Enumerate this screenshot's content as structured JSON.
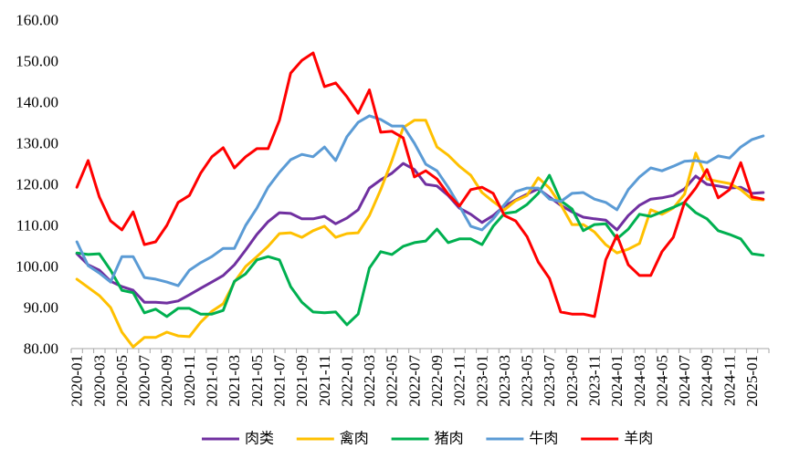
{
  "chart_data": {
    "type": "line",
    "ylim": [
      80,
      160
    ],
    "grid": false,
    "legend": "bottom",
    "yticks": [
      "80.00",
      "90.00",
      "100.00",
      "110.00",
      "120.00",
      "130.00",
      "140.00",
      "150.00",
      "160.00"
    ],
    "x_tick_labels": [
      "2020-01",
      "2020-03",
      "2020-05",
      "2020-07",
      "2020-09",
      "2020-11",
      "2021-01",
      "2021-03",
      "2021-05",
      "2021-07",
      "2021-09",
      "2021-11",
      "2022-01",
      "2022-03",
      "2022-05",
      "2022-07",
      "2022-09",
      "2022-11",
      "2023-01",
      "2023-03",
      "2023-05",
      "2023-07",
      "2023-09",
      "2023-11",
      "2024-01",
      "2024-03",
      "2024-05",
      "2024-07",
      "2024-09",
      "2024-11",
      "2025-01"
    ],
    "series": [
      {
        "name": "肉类",
        "color": "#7030A0",
        "values": [
          103.1,
          100.4,
          99.1,
          96.4,
          95.1,
          94.2,
          91.3,
          91.3,
          91.1,
          91.6,
          93.1,
          94.7,
          96.2,
          97.8,
          100.4,
          104.0,
          107.8,
          110.9,
          113.1,
          112.9,
          111.6,
          111.6,
          112.2,
          110.4,
          111.8,
          113.8,
          119.1,
          121.1,
          122.7,
          125.1,
          123.6,
          120.0,
          119.6,
          117.3,
          114.2,
          112.7,
          110.7,
          112.4,
          114.7,
          116.2,
          117.6,
          118.9,
          116.9,
          114.9,
          113.3,
          112.0,
          111.6,
          111.3,
          108.9,
          112.4,
          114.9,
          116.4,
          116.7,
          117.3,
          118.9,
          122.0,
          120.0,
          119.6,
          119.1,
          119.3,
          117.8,
          118.0
        ]
      },
      {
        "name": "禽肉",
        "color": "#FFC000",
        "values": [
          96.9,
          94.9,
          92.9,
          90.0,
          84.0,
          80.4,
          82.7,
          82.7,
          84.0,
          83.1,
          82.9,
          86.4,
          89.1,
          90.9,
          96.2,
          100.0,
          102.4,
          104.9,
          108.0,
          108.2,
          107.1,
          108.7,
          109.8,
          107.1,
          108.0,
          108.2,
          112.4,
          118.7,
          125.8,
          133.8,
          135.6,
          135.6,
          129.1,
          127.1,
          124.4,
          122.2,
          118.0,
          115.8,
          113.8,
          116.0,
          117.3,
          121.6,
          119.1,
          115.1,
          110.2,
          110.2,
          108.4,
          105.3,
          103.3,
          104.2,
          105.6,
          113.8,
          112.7,
          114.2,
          117.6,
          127.6,
          121.3,
          120.7,
          120.2,
          118.7,
          116.4,
          116.2
        ]
      },
      {
        "name": "猪肉",
        "color": "#00B050",
        "values": [
          103.3,
          102.9,
          103.1,
          99.1,
          94.2,
          93.6,
          88.7,
          89.6,
          87.8,
          89.8,
          89.8,
          88.4,
          88.4,
          89.3,
          96.4,
          98.2,
          101.6,
          102.4,
          101.6,
          95.1,
          91.3,
          88.9,
          88.7,
          88.9,
          85.8,
          88.4,
          99.6,
          103.6,
          102.9,
          104.9,
          105.8,
          106.2,
          109.1,
          105.8,
          106.7,
          106.7,
          105.3,
          109.8,
          112.9,
          113.3,
          115.1,
          117.8,
          122.2,
          116.0,
          114.0,
          108.7,
          110.2,
          110.4,
          106.7,
          109.1,
          112.7,
          112.2,
          113.3,
          114.4,
          115.6,
          113.1,
          111.6,
          108.7,
          107.8,
          106.7,
          103.1,
          102.7
        ]
      },
      {
        "name": "牛肉",
        "color": "#5B9BD5",
        "values": [
          106.0,
          100.2,
          98.4,
          96.2,
          102.4,
          102.4,
          97.3,
          96.9,
          96.2,
          95.3,
          99.1,
          100.9,
          102.4,
          104.4,
          104.4,
          110.0,
          114.2,
          119.3,
          122.9,
          126.0,
          127.3,
          126.7,
          129.1,
          125.8,
          131.6,
          135.1,
          136.7,
          135.8,
          134.2,
          134.2,
          130.0,
          124.9,
          123.3,
          119.3,
          114.7,
          109.8,
          108.9,
          111.6,
          115.1,
          118.2,
          119.1,
          119.1,
          116.4,
          115.8,
          117.8,
          118.0,
          116.4,
          115.6,
          113.8,
          118.7,
          121.8,
          124.0,
          123.3,
          124.4,
          125.6,
          125.8,
          125.3,
          126.9,
          126.4,
          129.1,
          130.9,
          131.8
        ]
      },
      {
        "name": "羊肉",
        "color": "#FF0000",
        "values": [
          119.3,
          125.8,
          116.9,
          111.1,
          108.9,
          113.3,
          105.3,
          106.0,
          110.0,
          115.6,
          117.3,
          122.7,
          126.7,
          128.9,
          124.0,
          126.7,
          128.7,
          128.7,
          135.6,
          147.1,
          150.2,
          152.0,
          143.8,
          144.7,
          141.3,
          137.3,
          143.0,
          132.7,
          132.9,
          131.3,
          121.8,
          123.3,
          121.3,
          117.6,
          114.7,
          118.7,
          119.3,
          117.8,
          112.4,
          111.1,
          107.3,
          101.1,
          97.1,
          88.9,
          88.4,
          88.4,
          87.8,
          101.6,
          107.6,
          100.4,
          97.8,
          97.8,
          103.6,
          107.1,
          115.6,
          119.1,
          123.6,
          116.7,
          118.7,
          125.3,
          116.9,
          116.4
        ]
      }
    ]
  }
}
